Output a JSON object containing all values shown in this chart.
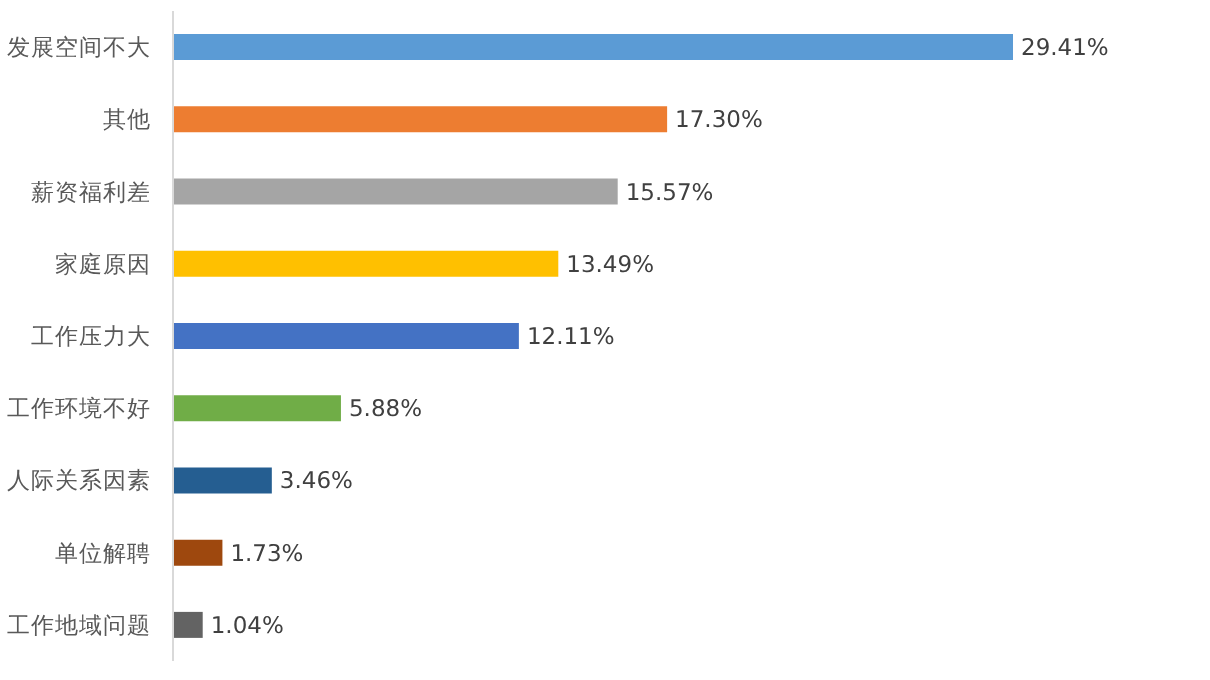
{
  "chart_data": {
    "type": "bar",
    "orientation": "horizontal",
    "categories": [
      "发展空间不大",
      "其他",
      "薪资福利差",
      "家庭原因",
      "工作压力大",
      "工作环境不好",
      "人际关系因素",
      "单位解聘",
      "工作地域问题"
    ],
    "values": [
      29.41,
      17.3,
      15.57,
      13.49,
      12.11,
      5.88,
      3.46,
      1.73,
      1.04
    ],
    "value_labels": [
      "29.41%",
      "17.30%",
      "15.57%",
      "13.49%",
      "12.11%",
      "5.88%",
      "3.46%",
      "1.73%",
      "1.04%"
    ],
    "colors": [
      "#5b9bd5",
      "#ed7d31",
      "#a5a5a5",
      "#ffc000",
      "#4472c4",
      "#70ad47",
      "#255e91",
      "#9e480e",
      "#636363"
    ],
    "grid": false
  }
}
